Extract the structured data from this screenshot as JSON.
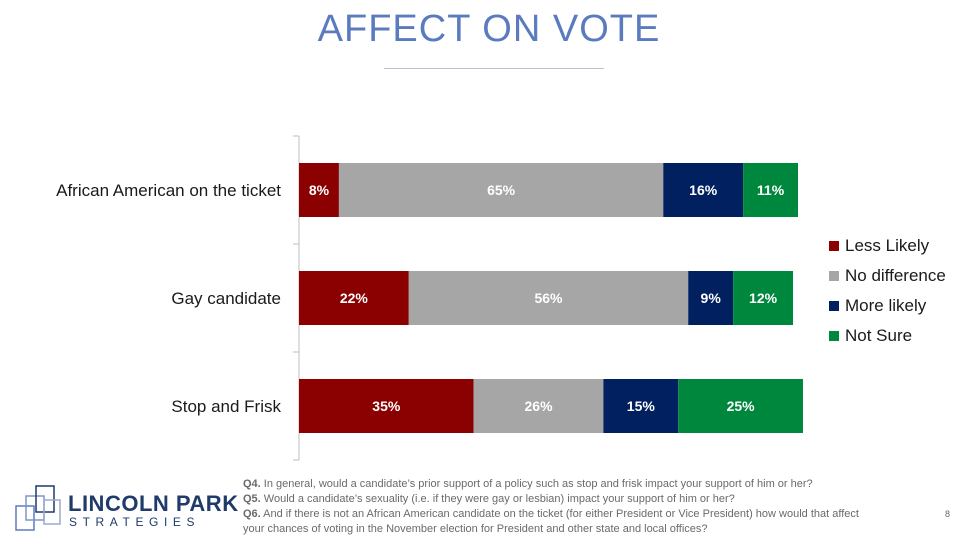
{
  "title": "AFFECT ON VOTE",
  "colors": {
    "less_likely": "#8b0000",
    "no_difference": "#a6a6a6",
    "more_likely": "#002060",
    "not_sure": "#00873e"
  },
  "chart_data": {
    "type": "bar",
    "orientation": "horizontal",
    "stacked": true,
    "categories": [
      "African American on the ticket",
      "Gay candidate",
      "Stop and Frisk"
    ],
    "series": [
      {
        "name": "Less Likely",
        "values": [
          8,
          22,
          35
        ],
        "color": "#8b0000"
      },
      {
        "name": "No difference",
        "values": [
          65,
          56,
          26
        ],
        "color": "#a6a6a6"
      },
      {
        "name": "More likely",
        "values": [
          16,
          9,
          15
        ],
        "color": "#002060"
      },
      {
        "name": "Not Sure",
        "values": [
          11,
          12,
          25
        ],
        "color": "#00873e"
      }
    ],
    "unit": "%",
    "legend_position": "right"
  },
  "logo": {
    "name": "LINCOLN PARK",
    "sub": "STRATEGIES"
  },
  "notes": [
    {
      "label": "Q4.",
      "text": " In general, would a candidate’s prior support of a policy such as stop and frisk impact your support of him or her?"
    },
    {
      "label": "Q5.",
      "text": " Would a candidate’s sexuality (i.e. if they were gay or lesbian) impact your support of him or her?"
    },
    {
      "label": "Q6.",
      "text": " And if there is not an African American candidate on the ticket (for either President or Vice President) how would that affect"
    },
    {
      "label": "",
      "text": "your chances of voting in the November election for President and other state and local offices?"
    }
  ],
  "page_number": "8"
}
